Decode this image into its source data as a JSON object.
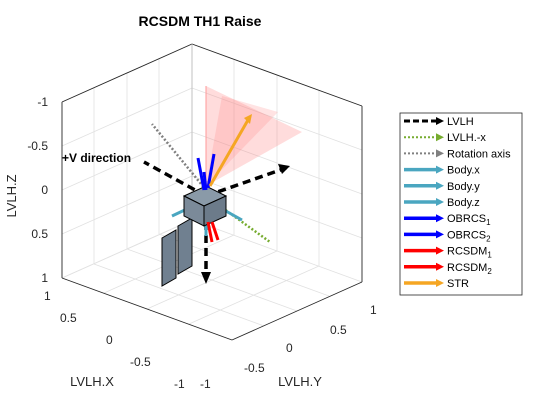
{
  "figure": {
    "title": "RCSDM TH1 Raise",
    "annotation": "+V direction",
    "axes": {
      "x": {
        "label": "LVLH.X",
        "ticks": [
          "1",
          "0.5",
          "0",
          "-0.5",
          "-1"
        ]
      },
      "y": {
        "label": "LVLH.Y",
        "ticks": [
          "-1",
          "-0.5",
          "0",
          "0.5",
          "1"
        ]
      },
      "z": {
        "label": "LVLH.Z",
        "ticks": [
          "-1",
          "-0.5",
          "0",
          "0.5",
          "1"
        ]
      }
    },
    "legend": {
      "placement": "right",
      "entries": [
        {
          "label": "LVLH",
          "sub": "",
          "color": "#000000",
          "style": "dashed"
        },
        {
          "label": "LVLH.-x",
          "sub": "",
          "color": "#77ac30",
          "style": "dotted"
        },
        {
          "label": "Rotation axis",
          "sub": "",
          "color": "#808080",
          "style": "dotted"
        },
        {
          "label": "Body.x",
          "sub": "",
          "color": "#4aa6c0",
          "style": "solid"
        },
        {
          "label": "Body.y",
          "sub": "",
          "color": "#4aa6c0",
          "style": "solid"
        },
        {
          "label": "Body.z",
          "sub": "",
          "color": "#4aa6c0",
          "style": "solid"
        },
        {
          "label": "OBRCS",
          "sub": "1",
          "color": "#0000ff",
          "style": "solid"
        },
        {
          "label": "OBRCS",
          "sub": "2",
          "color": "#0000ff",
          "style": "solid"
        },
        {
          "label": "RCSDM",
          "sub": "1",
          "color": "#ff0000",
          "style": "solid"
        },
        {
          "label": "RCSDM",
          "sub": "2",
          "color": "#ff0000",
          "style": "solid"
        },
        {
          "label": "STR",
          "sub": "",
          "color": "#f5a623",
          "style": "solid"
        }
      ]
    }
  }
}
